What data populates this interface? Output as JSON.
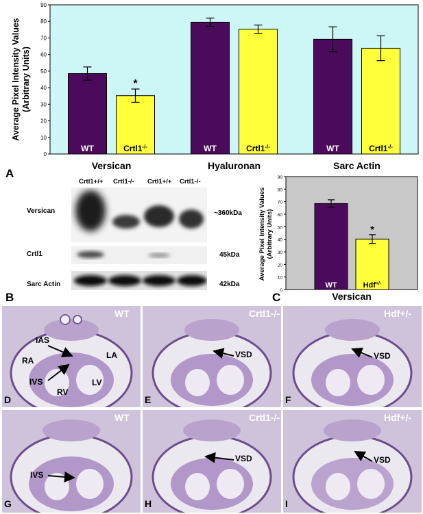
{
  "chart_data": [
    {
      "type": "bar",
      "ylabel": "Average Pixel Intensity Values\n(Arbitrary Units)",
      "ylim": [
        0,
        90
      ],
      "yticks": [
        0,
        10,
        20,
        30,
        40,
        50,
        60,
        70,
        80,
        90
      ],
      "groups": [
        "Versican",
        "Hyaluronan",
        "Sarc Actin"
      ],
      "series": [
        {
          "name": "WT",
          "color": "#4b0a5c",
          "values": [
            48.5,
            79.5,
            69.2
          ],
          "errors": [
            4,
            2.5,
            7.5
          ]
        },
        {
          "name": "Crtl1-/-",
          "color": "#ffff3a",
          "values": [
            35.2,
            75.3,
            63.8
          ],
          "errors": [
            4,
            2.5,
            7.5
          ]
        }
      ],
      "bar_labels": [
        [
          "WT",
          "Crtl1-/-"
        ],
        [
          "WT",
          "Crtl1-/-"
        ],
        [
          "WT",
          "Crtl1-/-"
        ]
      ],
      "significance": [
        {
          "group": "Versican",
          "series": "Crtl1-/-",
          "mark": "*"
        }
      ],
      "background": "#cdf6f6"
    },
    {
      "type": "bar",
      "ylabel": "Average Pixel Intensity Values\n(Arbitrary Units)",
      "ylim": [
        0,
        90
      ],
      "yticks": [
        0,
        10,
        20,
        30,
        40,
        50,
        60,
        70,
        80,
        90
      ],
      "groups": [
        "Versican"
      ],
      "series": [
        {
          "name": "WT",
          "color": "#4b0a5c",
          "values": [
            68.5
          ],
          "errors": [
            3
          ]
        },
        {
          "name": "Hdf+/-",
          "color": "#ffff3a",
          "values": [
            40.2
          ],
          "errors": [
            3.5
          ]
        }
      ],
      "bar_labels": [
        [
          "WT",
          "Hdf+/-"
        ]
      ],
      "significance": [
        {
          "group": "Versican",
          "series": "Hdf+/-",
          "mark": "*"
        }
      ],
      "background": "#c8c8c8"
    }
  ],
  "panel_letters": {
    "a": "A",
    "b": "B",
    "c": "C",
    "d": "D",
    "e": "E",
    "f": "F",
    "g": "G",
    "h": "H",
    "i": "I"
  },
  "western": {
    "lanes": [
      "Crtl1+/+",
      "Crtl1-/-",
      "Crtl1+/+",
      "Crtl1-/-"
    ],
    "rows": [
      {
        "name": "Versican",
        "kda": "~360kDa"
      },
      {
        "name": "Crtl1",
        "kda": "45kDa"
      },
      {
        "name": "Sarc Actin",
        "kda": "42kDa"
      }
    ]
  },
  "histology": {
    "d": {
      "genotype": "WT",
      "labels": [
        "IAS",
        "RA",
        "LA",
        "IVS",
        "RV",
        "LV"
      ]
    },
    "e": {
      "genotype": "Crtl1-/-",
      "labels": [
        "VSD"
      ]
    },
    "f": {
      "genotype": "Hdf+/-",
      "labels": [
        "VSD"
      ]
    },
    "g": {
      "genotype": "WT",
      "labels": [
        "IVS"
      ]
    },
    "h": {
      "genotype": "Crtl1-/-",
      "labels": [
        "VSD"
      ]
    },
    "i": {
      "genotype": "Hdf+/-",
      "labels": [
        "VSD"
      ]
    }
  }
}
